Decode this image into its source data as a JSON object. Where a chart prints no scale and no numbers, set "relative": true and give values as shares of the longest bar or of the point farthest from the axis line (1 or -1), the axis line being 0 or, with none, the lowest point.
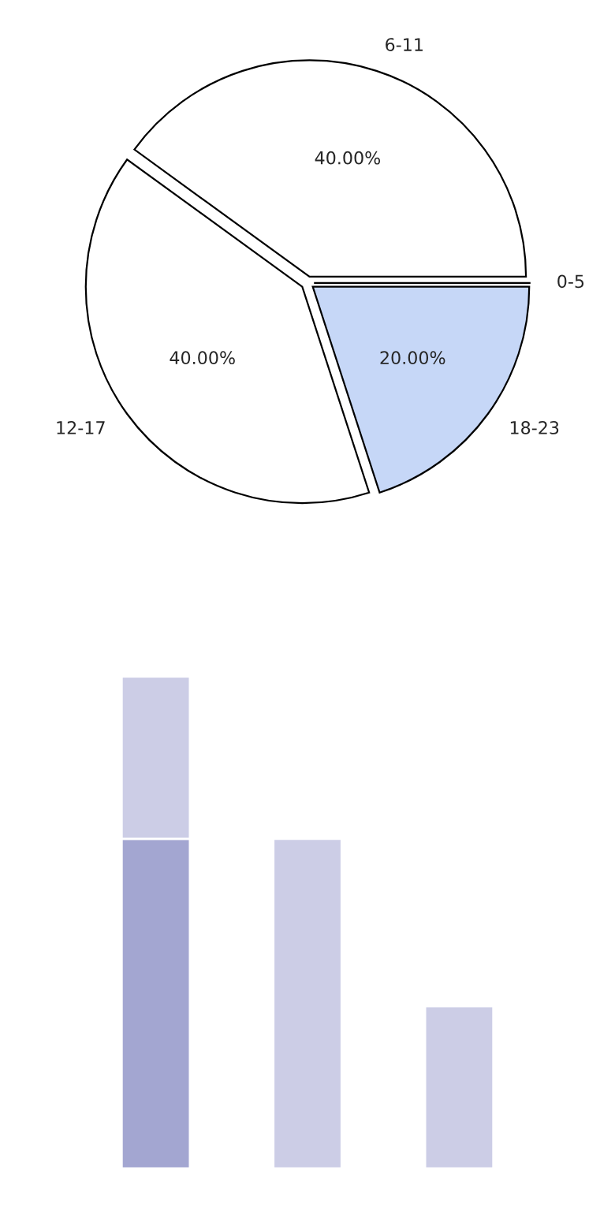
{
  "chart_data": [
    {
      "type": "pie",
      "categories": [
        "0-5",
        "6-11",
        "12-17",
        "18-23"
      ],
      "values": [
        0,
        40,
        40,
        20
      ],
      "colors": [
        "#ffffff",
        "#ffffff",
        "#ffffff",
        "#c6d7f7"
      ],
      "value_labels": [
        null,
        "40.00%",
        "40.00%",
        "20.00%"
      ]
    },
    {
      "type": "bar",
      "relative": true,
      "stacked": true,
      "categories": [
        null,
        null,
        null
      ],
      "series": [
        {
          "color": "#a3a6d1",
          "values": [
            0.67,
            0,
            0
          ]
        },
        {
          "color": "#cccde6",
          "values": [
            0.33,
            0.67,
            0.33
          ]
        }
      ]
    }
  ]
}
